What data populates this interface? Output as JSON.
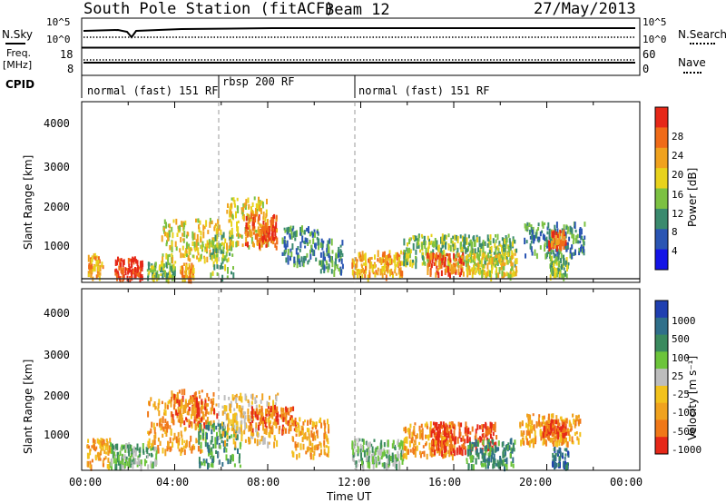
{
  "header": {
    "station": "South Pole Station (fitACF)",
    "beam": "Beam 12",
    "date": "27/May/2013"
  },
  "top_panels": {
    "nsky_label": "N.Sky",
    "nsearch_label": "N.Search",
    "freq_label_1": "Freq.",
    "freq_label_2": "[MHz]",
    "nave_label": "Nave",
    "cpid_label": "CPID",
    "noise_ticks": [
      "10^5",
      "10^0"
    ],
    "freq_ticks": [
      "18",
      "8"
    ],
    "nave_ticks": [
      "60",
      "0"
    ],
    "cpid_segments": [
      {
        "label": "normal (fast) 151 RF",
        "start": 0,
        "end": 6
      },
      {
        "label": "rbsp 200 RF",
        "start": 6,
        "end": 12
      },
      {
        "label": "normal (fast) 151 RF",
        "start": 12,
        "end": 24
      }
    ]
  },
  "axes": {
    "ylabel": "Slant Range [km]",
    "xlabel": "Time UT",
    "y_ticks": [
      "1000",
      "2000",
      "3000",
      "4000"
    ],
    "x_ticks": [
      "00:00",
      "04:00",
      "08:00",
      "12:00",
      "16:00",
      "20:00",
      "00:00"
    ]
  },
  "power_colorbar": {
    "label": "Power [dB]",
    "ticks": [
      "4",
      "8",
      "12",
      "16",
      "20",
      "24",
      "28"
    ],
    "colors": [
      "#1414e6",
      "#2a55b3",
      "#3a8a6e",
      "#7cc142",
      "#e8d21c",
      "#f0a21e",
      "#f06b18",
      "#e62818"
    ]
  },
  "velocity_colorbar": {
    "label": "Velocity [m s⁻¹]",
    "ticks": [
      "1000",
      "500",
      "100",
      "25",
      "-25",
      "-100",
      "-500",
      "-1000"
    ],
    "colors": [
      "#1f3fb0",
      "#2f6f8a",
      "#3a8a5e",
      "#6cc43a",
      "#bdbdbd",
      "#f2c21c",
      "#f0a21e",
      "#f07818",
      "#e62818"
    ]
  },
  "chart_data": {
    "type": "heatmap",
    "title": "South Pole Station (fitACF) Beam 12",
    "xlabel": "Time UT",
    "ylabel": "Slant Range [km]",
    "xlim": [
      0,
      24
    ],
    "ylim": [
      180,
      4500
    ],
    "power_patches": [
      {
        "t0": 0.2,
        "t1": 0.9,
        "r0": 250,
        "r1": 850,
        "level": 5
      },
      {
        "t0": 1.4,
        "t1": 2.6,
        "r0": 250,
        "r1": 750,
        "level": 7
      },
      {
        "t0": 2.8,
        "t1": 4.0,
        "r0": 250,
        "r1": 650,
        "level": 3
      },
      {
        "t0": 3.4,
        "t1": 5.9,
        "r0": 700,
        "r1": 1700,
        "level": 4
      },
      {
        "t0": 4.2,
        "t1": 4.8,
        "r0": 250,
        "r1": 600,
        "level": 5
      },
      {
        "t0": 5.5,
        "t1": 6.5,
        "r0": 250,
        "r1": 1400,
        "level": 3
      },
      {
        "t0": 6.2,
        "t1": 8.0,
        "r0": 1000,
        "r1": 2200,
        "level": 4
      },
      {
        "t0": 7.0,
        "t1": 8.4,
        "r0": 1000,
        "r1": 1800,
        "level": 6
      },
      {
        "t0": 7.7,
        "t1": 8.3,
        "r0": 1200,
        "r1": 1500,
        "level": 7
      },
      {
        "t0": 8.6,
        "t1": 10.2,
        "r0": 600,
        "r1": 1500,
        "level": 2
      },
      {
        "t0": 10.2,
        "t1": 11.2,
        "r0": 400,
        "r1": 1200,
        "level": 2
      },
      {
        "t0": 11.6,
        "t1": 13.8,
        "r0": 300,
        "r1": 900,
        "level": 5
      },
      {
        "t0": 13.8,
        "t1": 18.7,
        "r0": 600,
        "r1": 1300,
        "level": 3
      },
      {
        "t0": 14.8,
        "t1": 16.4,
        "r0": 350,
        "r1": 850,
        "level": 6
      },
      {
        "t0": 16.5,
        "t1": 18.7,
        "r0": 300,
        "r1": 850,
        "level": 4
      },
      {
        "t0": 19.0,
        "t1": 21.6,
        "r0": 800,
        "r1": 1600,
        "level": 2
      },
      {
        "t0": 20.0,
        "t1": 20.8,
        "r0": 1000,
        "r1": 1400,
        "level": 6
      },
      {
        "t0": 20.1,
        "t1": 20.9,
        "r0": 300,
        "r1": 800,
        "level": 3
      }
    ],
    "velocity_patches": [
      {
        "t0": 0.2,
        "t1": 1.2,
        "r0": 250,
        "r1": 900,
        "level": 6
      },
      {
        "t0": 1.2,
        "t1": 3.2,
        "r0": 250,
        "r1": 800,
        "level": 3
      },
      {
        "t0": 2.8,
        "t1": 5.2,
        "r0": 600,
        "r1": 1900,
        "level": 6
      },
      {
        "t0": 3.8,
        "t1": 5.8,
        "r0": 1200,
        "r1": 2100,
        "level": 7
      },
      {
        "t0": 5.0,
        "t1": 6.8,
        "r0": 250,
        "r1": 1300,
        "level": 2
      },
      {
        "t0": 6.0,
        "t1": 8.4,
        "r0": 800,
        "r1": 2000,
        "level": 5
      },
      {
        "t0": 7.2,
        "t1": 9.2,
        "r0": 1100,
        "r1": 1700,
        "level": 7
      },
      {
        "t0": 9.0,
        "t1": 10.6,
        "r0": 500,
        "r1": 1400,
        "level": 6
      },
      {
        "t0": 11.6,
        "t1": 13.8,
        "r0": 250,
        "r1": 900,
        "level": 3
      },
      {
        "t0": 13.8,
        "t1": 16.0,
        "r0": 500,
        "r1": 1300,
        "level": 6
      },
      {
        "t0": 15.0,
        "t1": 17.8,
        "r0": 600,
        "r1": 1300,
        "level": 8
      },
      {
        "t0": 16.5,
        "t1": 18.6,
        "r0": 250,
        "r1": 900,
        "level": 2
      },
      {
        "t0": 18.8,
        "t1": 21.4,
        "r0": 800,
        "r1": 1500,
        "level": 6
      },
      {
        "t0": 19.8,
        "t1": 20.8,
        "r0": 1000,
        "r1": 1350,
        "level": 8
      },
      {
        "t0": 20.2,
        "t1": 20.9,
        "r0": 250,
        "r1": 700,
        "level": 1
      }
    ]
  }
}
